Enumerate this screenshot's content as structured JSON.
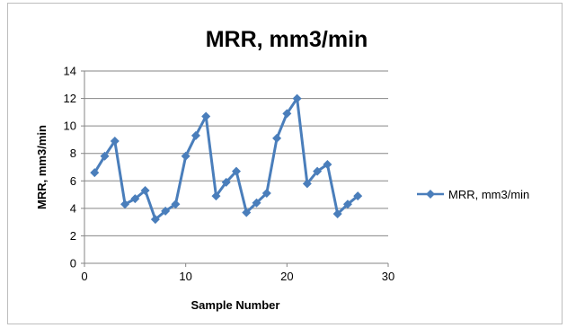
{
  "chart_data": {
    "type": "line",
    "title": "MRR, mm3/min",
    "xlabel": "Sample Number",
    "ylabel": "MRR, mm3/min",
    "xlim": [
      0,
      30
    ],
    "ylim": [
      0,
      14
    ],
    "x_ticks": [
      0,
      10,
      20,
      30
    ],
    "y_ticks": [
      0,
      2,
      4,
      6,
      8,
      10,
      12,
      14
    ],
    "grid": "horizontal",
    "legend_position": "right",
    "series": [
      {
        "name": "MRR, mm3/min",
        "color": "#4a7ebb",
        "marker": "diamond",
        "x": [
          1,
          2,
          3,
          4,
          5,
          6,
          7,
          8,
          9,
          10,
          11,
          12,
          13,
          14,
          15,
          16,
          17,
          18,
          19,
          20,
          21,
          22,
          23,
          24,
          25,
          26,
          27
        ],
        "y": [
          6.6,
          7.8,
          8.9,
          4.3,
          4.7,
          5.3,
          3.2,
          3.8,
          4.3,
          7.8,
          9.3,
          10.7,
          4.9,
          5.9,
          6.7,
          3.7,
          4.4,
          5.1,
          9.1,
          10.9,
          12.0,
          5.8,
          6.7,
          7.2,
          3.6,
          4.3,
          4.9
        ]
      }
    ]
  }
}
